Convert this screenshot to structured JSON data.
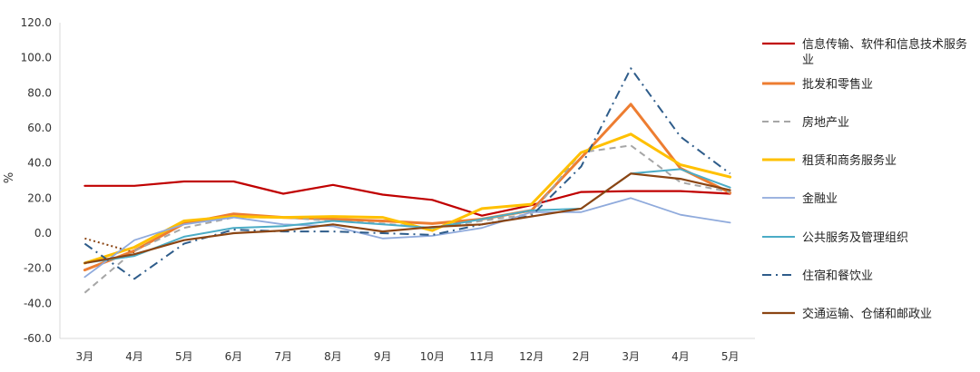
{
  "chart_data": {
    "type": "line",
    "title": "",
    "xlabel": "",
    "ylabel": "%",
    "ylim": [
      -60,
      120
    ],
    "yticks": [
      "-60.0",
      "-40.0",
      "-20.0",
      "0.0",
      "20.0",
      "40.0",
      "60.0",
      "80.0",
      "100.0",
      "120.0"
    ],
    "grid": false,
    "legend_position": "right",
    "categories": [
      "3月",
      "4月",
      "5月",
      "6月",
      "7月",
      "8月",
      "9月",
      "10月",
      "11月",
      "12月",
      "2月",
      "3月",
      "4月",
      "5月"
    ],
    "series": [
      {
        "name": "信息传输、软件和信息技术服务业",
        "color": "#c00000",
        "style": "solid",
        "width": 2.2,
        "values": [
          27,
          27,
          29.5,
          29.5,
          22.5,
          27.5,
          22,
          19,
          10,
          16,
          23.5,
          24,
          24,
          22.5
        ]
      },
      {
        "name": "批发和零售业",
        "color": "#ed7d31",
        "style": "solid",
        "width": 3,
        "values": [
          -21,
          -10,
          5.5,
          11,
          9,
          8,
          7,
          5.5,
          8,
          13,
          43,
          73.5,
          37,
          23
        ]
      },
      {
        "name": "房地产业",
        "color": "#a6a6a6",
        "style": "dash",
        "width": 2,
        "values": [
          -34,
          -10,
          3,
          9,
          9,
          7,
          5.5,
          3,
          7,
          11,
          46,
          50,
          29,
          23.5
        ]
      },
      {
        "name": "租赁和商务服务业",
        "color": "#ffc000",
        "style": "solid",
        "width": 3,
        "values": [
          -17,
          -8,
          7,
          9.5,
          9,
          9.5,
          9,
          1.5,
          14,
          16.5,
          46,
          56.5,
          39,
          32
        ]
      },
      {
        "name": "金融业",
        "color": "#8faadc",
        "style": "solid",
        "width": 1.8,
        "values": [
          -25,
          -4,
          5,
          9,
          5,
          4,
          -3,
          -1.5,
          3,
          12,
          12,
          20,
          10.5,
          6
        ]
      },
      {
        "name": "公共服务及管理组织",
        "color": "#4bacc6",
        "style": "solid",
        "width": 2,
        "values": [
          -17,
          -13,
          -2,
          3,
          4,
          7,
          5,
          3,
          8,
          13,
          14,
          34,
          36.5,
          26
        ]
      },
      {
        "name": "住宿和餐饮业",
        "color": "#2e5c8a",
        "style": "dashdot",
        "width": 2,
        "values": [
          -6,
          -26,
          -6,
          2,
          1,
          1,
          0,
          -1,
          5,
          10,
          38,
          94,
          55,
          34
        ]
      },
      {
        "name": "交通运输、仓储和邮政业",
        "color": "#8b4513",
        "style": "solid",
        "width": 2.2,
        "values": [
          -17,
          -12,
          -4,
          0,
          1.5,
          5,
          1,
          3.5,
          5,
          9.5,
          14,
          34,
          31,
          24.5
        ]
      }
    ],
    "dotted_extension": {
      "color": "#8b4513",
      "values": [
        -3,
        -11
      ]
    }
  }
}
